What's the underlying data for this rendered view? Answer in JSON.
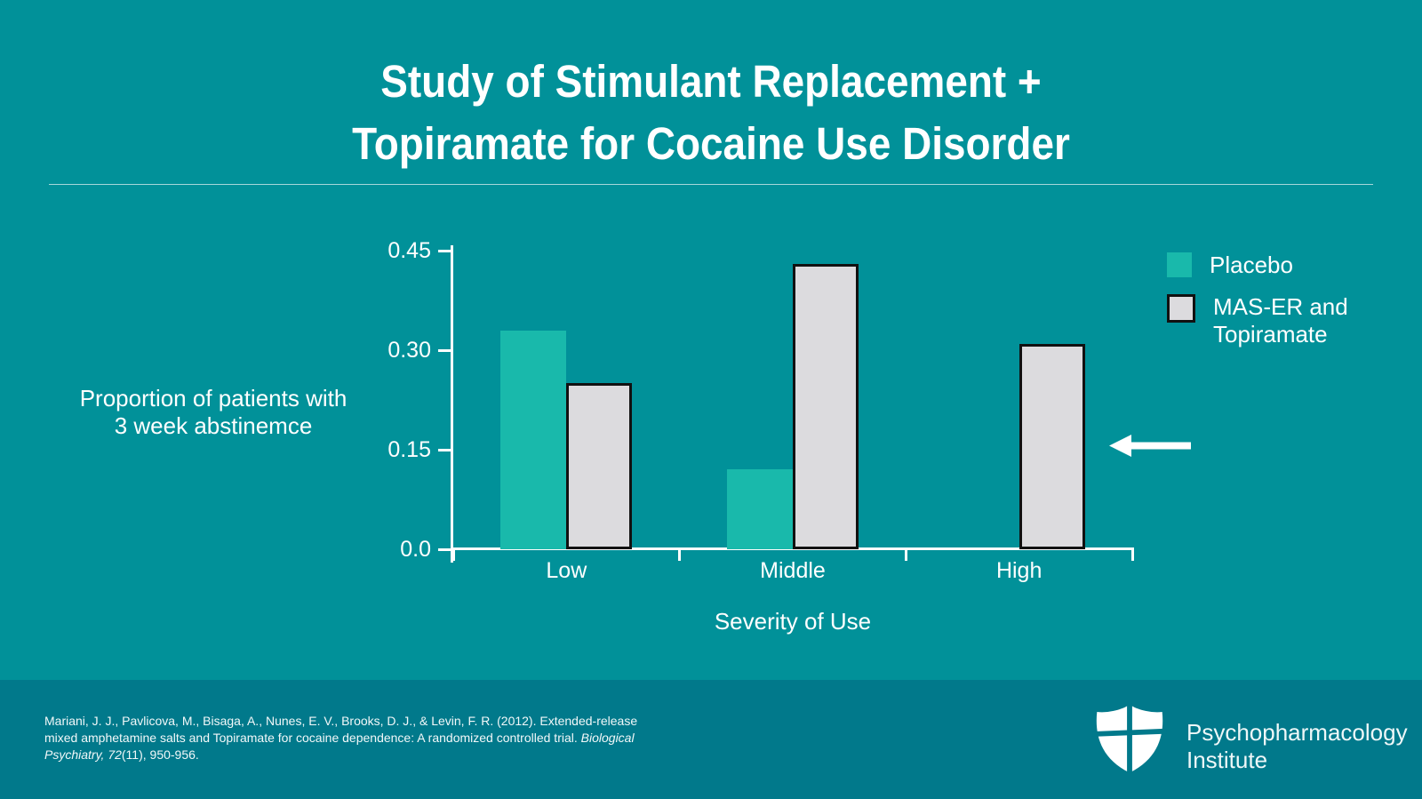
{
  "slide": {
    "title_line1": "Study of Stimulant Replacement +",
    "title_line2": "Topiramate for Cocaine Use Disorder"
  },
  "chart_data": {
    "type": "bar",
    "categories": [
      "Low",
      "Middle",
      "High"
    ],
    "series": [
      {
        "name": "Placebo",
        "color": "#19b9ab",
        "outlined": false,
        "values": [
          0.33,
          0.12,
          0
        ]
      },
      {
        "name": "MAS-ER and Topiramate",
        "color": "#dcdbde",
        "outlined": true,
        "values": [
          0.25,
          0.43,
          0.31
        ]
      }
    ],
    "title": "",
    "xlabel": "Severity of Use",
    "ylabel": "Proportion of patients with 3 week abstinemce",
    "ylim": [
      0,
      0.45
    ],
    "yticks": [
      0,
      0.15,
      0.3,
      0.45
    ],
    "ytick_labels": [
      "0.0",
      "0.15",
      "0.30",
      "0.45"
    ],
    "grid": false,
    "legend_position": "right",
    "annotation": {
      "type": "arrow-left",
      "target": "High severity MAS-ER and Topiramate bar"
    }
  },
  "ylabel_lines": [
    "Proportion of patients with",
    "3 week abstinemce"
  ],
  "footer": {
    "citation_segments": [
      {
        "text": "Mariani, J. J., Pavlicova, M., Bisaga, A., Nunes, E. V., Brooks, D. J., & Levin, F. R. (2012). Extended-release",
        "italic": false,
        "break_after": true
      },
      {
        "text": "mixed amphetamine salts and Topiramate for cocaine dependence: A randomized controlled trial. ",
        "italic": false,
        "break_after": false
      },
      {
        "text": "Biological",
        "italic": true,
        "break_after": true
      },
      {
        "text": "Psychiatry, 72",
        "italic": true,
        "break_after": false
      },
      {
        "text": "(11), 950-956.",
        "italic": false,
        "break_after": false
      }
    ],
    "logo_line1": "Psychopharmacology",
    "logo_line2": "Institute"
  },
  "colors": {
    "background": "#019199",
    "footer_background": "#01798b",
    "placebo_bar": "#19b9ab",
    "treatment_bar": "#dcdbde",
    "bar_outline": "#111111",
    "text": "#ffffff"
  }
}
